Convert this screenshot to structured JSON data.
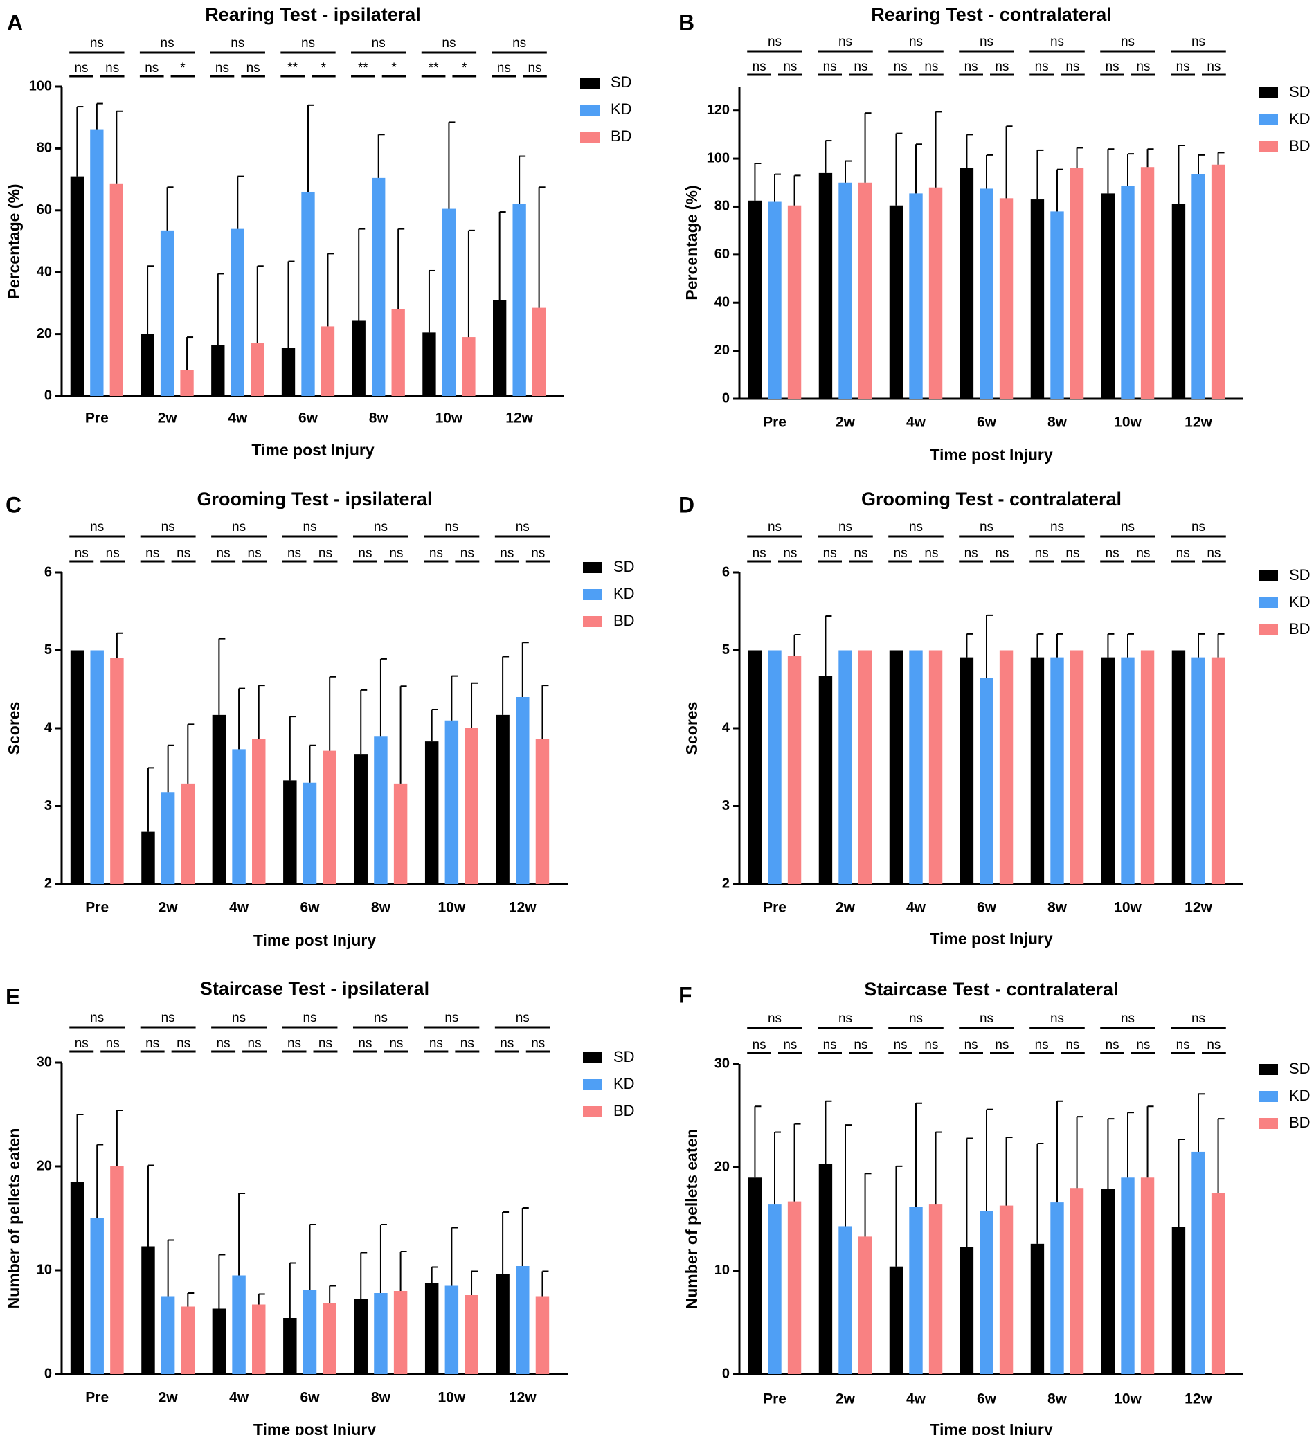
{
  "colors": {
    "SD": "#000000",
    "KD": "#4f9ff5",
    "BD": "#f98182"
  },
  "chart_data": [
    {
      "id": "A",
      "type": "bar",
      "letter": "A",
      "title": "Rearing Test - ipsilateral",
      "xlabel": "Time post Injury",
      "ylabel": "Percentage (%)",
      "ylim": [
        0,
        100
      ],
      "yticks": [
        0,
        20,
        40,
        60,
        80,
        100
      ],
      "legend": [
        "SD",
        "KD",
        "BD"
      ],
      "categories": [
        "Pre",
        "2w",
        "4w",
        "6w",
        "8w",
        "10w",
        "12w"
      ],
      "series": [
        {
          "name": "SD",
          "values": [
            71,
            20,
            16.5,
            15.5,
            24.5,
            20.5,
            31
          ],
          "errors": [
            22.5,
            22,
            23,
            28,
            29.5,
            20,
            28.5
          ]
        },
        {
          "name": "KD",
          "values": [
            86,
            53.5,
            54,
            66,
            70.5,
            60.5,
            62
          ],
          "errors": [
            8.5,
            14,
            17,
            28,
            14,
            28,
            15.5
          ]
        },
        {
          "name": "BD",
          "values": [
            68.5,
            8.5,
            17,
            22.5,
            28,
            19,
            28.5
          ],
          "errors": [
            23.5,
            10.5,
            25,
            23.5,
            26,
            34.5,
            39
          ]
        }
      ],
      "significance": {
        "top": [
          "ns",
          "ns",
          "ns",
          "ns",
          "ns",
          "ns",
          "ns"
        ],
        "pairs": [
          [
            "ns",
            "ns"
          ],
          [
            "ns",
            "*"
          ],
          [
            "ns",
            "ns"
          ],
          [
            "**",
            "*"
          ],
          [
            "**",
            "*"
          ],
          [
            "**",
            "*"
          ],
          [
            "ns",
            "ns"
          ]
        ]
      }
    },
    {
      "id": "B",
      "type": "bar",
      "letter": "B",
      "title": "Rearing Test - contralateral",
      "xlabel": "Time post Injury",
      "ylabel": "Percentage (%)",
      "ylim": [
        0,
        130
      ],
      "yticks": [
        0,
        20,
        40,
        60,
        80,
        100,
        120
      ],
      "legend": [
        "SD",
        "KD",
        "BD"
      ],
      "categories": [
        "Pre",
        "2w",
        "4w",
        "6w",
        "8w",
        "10w",
        "12w"
      ],
      "series": [
        {
          "name": "SD",
          "values": [
            82.5,
            94,
            80.5,
            96,
            83,
            85.5,
            81
          ],
          "errors": [
            15.5,
            13.5,
            30,
            14,
            20.5,
            18.5,
            24.5
          ]
        },
        {
          "name": "KD",
          "values": [
            82,
            90,
            85.5,
            87.5,
            78,
            88.5,
            93.5
          ],
          "errors": [
            11.5,
            9,
            20.5,
            14,
            17.5,
            13.5,
            8
          ]
        },
        {
          "name": "BD",
          "values": [
            80.5,
            90,
            88,
            83.5,
            96,
            96.5,
            97.5
          ],
          "errors": [
            12.5,
            29,
            31.5,
            30,
            8.5,
            7.5,
            5
          ]
        }
      ],
      "significance": {
        "top": [
          "ns",
          "ns",
          "ns",
          "ns",
          "ns",
          "ns",
          "ns"
        ],
        "pairs": [
          [
            "ns",
            "ns"
          ],
          [
            "ns",
            "ns"
          ],
          [
            "ns",
            "ns"
          ],
          [
            "ns",
            "ns"
          ],
          [
            "ns",
            "ns"
          ],
          [
            "ns",
            "ns"
          ],
          [
            "ns",
            "ns"
          ]
        ]
      }
    },
    {
      "id": "C",
      "type": "bar",
      "letter": "C",
      "title": "Grooming Test - ipsilateral",
      "xlabel": "Time post Injury",
      "ylabel": "Scores",
      "ylim": [
        2,
        6
      ],
      "yticks": [
        2,
        3,
        4,
        5,
        6
      ],
      "legend": [
        "SD",
        "KD",
        "BD"
      ],
      "categories": [
        "Pre",
        "2w",
        "4w",
        "6w",
        "8w",
        "10w",
        "12w"
      ],
      "series": [
        {
          "name": "SD",
          "values": [
            5,
            2.67,
            4.17,
            3.33,
            3.67,
            3.83,
            4.17
          ],
          "errors": [
            0,
            0.82,
            0.98,
            0.82,
            0.82,
            0.41,
            0.75
          ]
        },
        {
          "name": "KD",
          "values": [
            5,
            3.18,
            3.73,
            3.3,
            3.9,
            4.1,
            4.4
          ],
          "errors": [
            0,
            0.6,
            0.78,
            0.48,
            0.99,
            0.57,
            0.7
          ]
        },
        {
          "name": "BD",
          "values": [
            4.9,
            3.29,
            3.86,
            3.71,
            3.29,
            4,
            3.86
          ],
          "errors": [
            0.32,
            0.76,
            0.69,
            0.95,
            1.25,
            0.58,
            0.69
          ]
        }
      ],
      "significance": {
        "top": [
          "ns",
          "ns",
          "ns",
          "ns",
          "ns",
          "ns",
          "ns"
        ],
        "pairs": [
          [
            "ns",
            "ns"
          ],
          [
            "ns",
            "ns"
          ],
          [
            "ns",
            "ns"
          ],
          [
            "ns",
            "ns"
          ],
          [
            "ns",
            "ns"
          ],
          [
            "ns",
            "ns"
          ],
          [
            "ns",
            "ns"
          ]
        ]
      }
    },
    {
      "id": "D",
      "type": "bar",
      "letter": "D",
      "title": "Grooming Test - contralateral",
      "xlabel": "Time post Injury",
      "ylabel": "Scores",
      "ylim": [
        2,
        6
      ],
      "yticks": [
        2,
        3,
        4,
        5,
        6
      ],
      "legend": [
        "SD",
        "KD",
        "BD"
      ],
      "categories": [
        "Pre",
        "2w",
        "4w",
        "6w",
        "8w",
        "10w",
        "12w"
      ],
      "series": [
        {
          "name": "SD",
          "values": [
            5,
            4.67,
            5,
            4.91,
            4.91,
            4.91,
            5
          ],
          "errors": [
            0,
            0.77,
            0,
            0.3,
            0.3,
            0.3,
            0
          ]
        },
        {
          "name": "KD",
          "values": [
            5,
            5,
            5,
            4.64,
            4.91,
            4.91,
            4.91
          ],
          "errors": [
            0,
            0,
            0,
            0.81,
            0.3,
            0.3,
            0.3
          ]
        },
        {
          "name": "BD",
          "values": [
            4.93,
            5,
            5,
            5,
            5,
            5,
            4.91
          ],
          "errors": [
            0.27,
            0,
            0,
            0,
            0,
            0,
            0.3
          ]
        }
      ],
      "significance": {
        "top": [
          "ns",
          "ns",
          "ns",
          "ns",
          "ns",
          "ns",
          "ns"
        ],
        "pairs": [
          [
            "ns",
            "ns"
          ],
          [
            "ns",
            "ns"
          ],
          [
            "ns",
            "ns"
          ],
          [
            "ns",
            "ns"
          ],
          [
            "ns",
            "ns"
          ],
          [
            "ns",
            "ns"
          ],
          [
            "ns",
            "ns"
          ]
        ]
      }
    },
    {
      "id": "E",
      "type": "bar",
      "letter": "E",
      "title": "Staircase Test - ipsilateral",
      "xlabel": "Time post Injury",
      "ylabel": "Number of pellets eaten",
      "ylim": [
        0,
        30
      ],
      "yticks": [
        0,
        10,
        20,
        30
      ],
      "legend": [
        "SD",
        "KD",
        "BD"
      ],
      "categories": [
        "Pre",
        "2w",
        "4w",
        "6w",
        "8w",
        "10w",
        "12w"
      ],
      "series": [
        {
          "name": "SD",
          "values": [
            18.5,
            12.3,
            6.3,
            5.4,
            7.2,
            8.8,
            9.6
          ],
          "errors": [
            6.5,
            7.8,
            5.2,
            5.3,
            4.5,
            1.5,
            6
          ]
        },
        {
          "name": "KD",
          "values": [
            15,
            7.5,
            9.5,
            8.1,
            7.8,
            8.5,
            10.4
          ],
          "errors": [
            7.1,
            5.4,
            7.9,
            6.3,
            6.6,
            5.6,
            5.6
          ]
        },
        {
          "name": "BD",
          "values": [
            20,
            6.5,
            6.7,
            6.8,
            8,
            7.6,
            7.5
          ],
          "errors": [
            5.4,
            1.3,
            1,
            1.7,
            3.8,
            2.3,
            2.4
          ]
        }
      ],
      "significance": {
        "top": [
          "ns",
          "ns",
          "ns",
          "ns",
          "ns",
          "ns",
          "ns"
        ],
        "pairs": [
          [
            "ns",
            "ns"
          ],
          [
            "ns",
            "ns"
          ],
          [
            "ns",
            "ns"
          ],
          [
            "ns",
            "ns"
          ],
          [
            "ns",
            "ns"
          ],
          [
            "ns",
            "ns"
          ],
          [
            "ns",
            "ns"
          ]
        ]
      }
    },
    {
      "id": "F",
      "type": "bar",
      "letter": "F",
      "title": "Staircase Test - contralateral",
      "xlabel": "Time post Injury",
      "ylabel": "Number of pellets eaten",
      "ylim": [
        0,
        30
      ],
      "yticks": [
        0,
        10,
        20,
        30
      ],
      "legend": [
        "SD",
        "KD",
        "BD"
      ],
      "categories": [
        "Pre",
        "2w",
        "4w",
        "6w",
        "8w",
        "10w",
        "12w"
      ],
      "series": [
        {
          "name": "SD",
          "values": [
            19,
            20.3,
            10.4,
            12.3,
            12.6,
            17.9,
            14.2
          ],
          "errors": [
            6.9,
            6.1,
            9.7,
            10.5,
            9.7,
            6.8,
            8.5
          ]
        },
        {
          "name": "KD",
          "values": [
            16.4,
            14.3,
            16.2,
            15.8,
            16.6,
            19,
            21.5
          ],
          "errors": [
            7,
            9.8,
            10,
            9.8,
            9.8,
            6.3,
            5.6
          ]
        },
        {
          "name": "BD",
          "values": [
            16.7,
            13.3,
            16.4,
            16.3,
            18,
            19,
            17.5
          ],
          "errors": [
            7.5,
            6.1,
            7,
            6.6,
            6.9,
            6.9,
            7.2
          ]
        }
      ],
      "significance": {
        "top": [
          "ns",
          "ns",
          "ns",
          "ns",
          "ns",
          "ns",
          "ns"
        ],
        "pairs": [
          [
            "ns",
            "ns"
          ],
          [
            "ns",
            "ns"
          ],
          [
            "ns",
            "ns"
          ],
          [
            "ns",
            "ns"
          ],
          [
            "ns",
            "ns"
          ],
          [
            "ns",
            "ns"
          ],
          [
            "ns",
            "ns"
          ]
        ]
      }
    }
  ]
}
